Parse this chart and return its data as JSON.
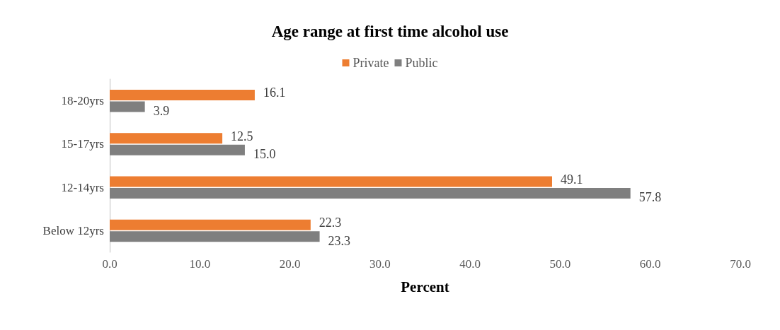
{
  "chart_data": {
    "type": "bar",
    "orientation": "horizontal",
    "title": "Age range at first time alcohol use",
    "xlabel": "Percent",
    "categories": [
      "18-20yrs",
      "15-17yrs",
      "12-14yrs",
      "Below 12yrs"
    ],
    "series": [
      {
        "name": "Private",
        "color": "#ed7d31",
        "values": [
          16.1,
          12.5,
          49.1,
          22.3
        ],
        "value_labels": [
          "16.1",
          "12.5",
          "49.1",
          "22.3"
        ]
      },
      {
        "name": "Public",
        "color": "#7f7f7f",
        "values": [
          3.9,
          15.0,
          57.8,
          23.3
        ],
        "value_labels": [
          "3.9",
          "15.0",
          "57.8",
          "23.3"
        ]
      }
    ],
    "xlim": [
      0,
      70
    ],
    "xticks": [
      {
        "value": 0,
        "label": "0.0"
      },
      {
        "value": 10,
        "label": "10.0"
      },
      {
        "value": 20,
        "label": "20.0"
      },
      {
        "value": 30,
        "label": "30.0"
      },
      {
        "value": 40,
        "label": "40.0"
      },
      {
        "value": 50,
        "label": "50.0"
      },
      {
        "value": 60,
        "label": "60.0"
      },
      {
        "value": 70,
        "label": "70.0"
      }
    ],
    "grid": false,
    "legend": "top"
  }
}
